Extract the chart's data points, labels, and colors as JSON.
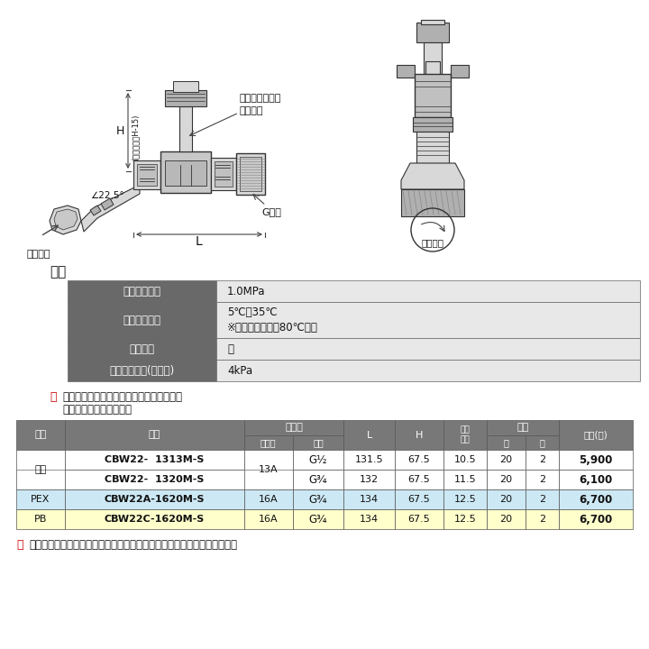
{
  "bg_color": "#ffffff",
  "spec_title": "仕様",
  "spec_rows": [
    {
      "label": "最高許容圧力",
      "value1": "1.0MPa",
      "value2": null
    },
    {
      "label": "使用温度範囲",
      "value1": "5℃～35℃",
      "value2": "※二次側逆流時は80℃以下"
    },
    {
      "label": "使用流体",
      "value1": "水",
      "value2": null
    },
    {
      "label": "最低作動圧力(逆止弁)",
      "value1": "4kPa",
      "value2": null
    }
  ],
  "note1_red": "注",
  "note1_black": "：・流水方向を確認して使用して下さい。",
  "note2_black": "　　・取付姿勢は任意です。",
  "table_rows": [
    {
      "tekiyo": "共用",
      "hinban": "CBW22-  1313M-S",
      "jushi": "13A",
      "neji": "G½",
      "L": "131.5",
      "H": "67.5",
      "naikei": "10.5",
      "dai": "20",
      "sho": "2",
      "kakaku": "5,900",
      "row_color": "#ffffff",
      "merge_tekiyo": true,
      "merge_jushi": true
    },
    {
      "tekiyo": "",
      "hinban": "CBW22-  1320M-S",
      "jushi": "",
      "neji": "G¾",
      "L": "132",
      "H": "67.5",
      "naikei": "11.5",
      "dai": "20",
      "sho": "2",
      "kakaku": "6,100",
      "row_color": "#ffffff",
      "merge_tekiyo": false,
      "merge_jushi": false
    },
    {
      "tekiyo": "PEX",
      "hinban": "CBW22A-1620M-S",
      "jushi": "16A",
      "neji": "G¾",
      "L": "134",
      "H": "67.5",
      "naikei": "12.5",
      "dai": "20",
      "sho": "2",
      "kakaku": "6,700",
      "row_color": "#cce8f4",
      "merge_tekiyo": false,
      "merge_jushi": false
    },
    {
      "tekiyo": "PB",
      "hinban": "CBW22C-1620M-S",
      "jushi": "16A",
      "neji": "G¾",
      "L": "134",
      "H": "67.5",
      "naikei": "12.5",
      "dai": "20",
      "sho": "2",
      "kakaku": "6,700",
      "row_color": "#ffffcc",
      "merge_tekiyo": false,
      "merge_jushi": false
    }
  ],
  "note3_red": "注",
  "note3_black": "：パッキンは消耗部品です。点検、交換が可能な場所に取付けて下さい。",
  "hdr_bg": "#787878",
  "hdr_fg": "#ffffff",
  "lbl_bg": "#696969",
  "lbl_fg": "#ffffff",
  "spec_val_bg": "#e8e8e8",
  "red": "#cc0000",
  "black": "#111111",
  "border": "#666666"
}
